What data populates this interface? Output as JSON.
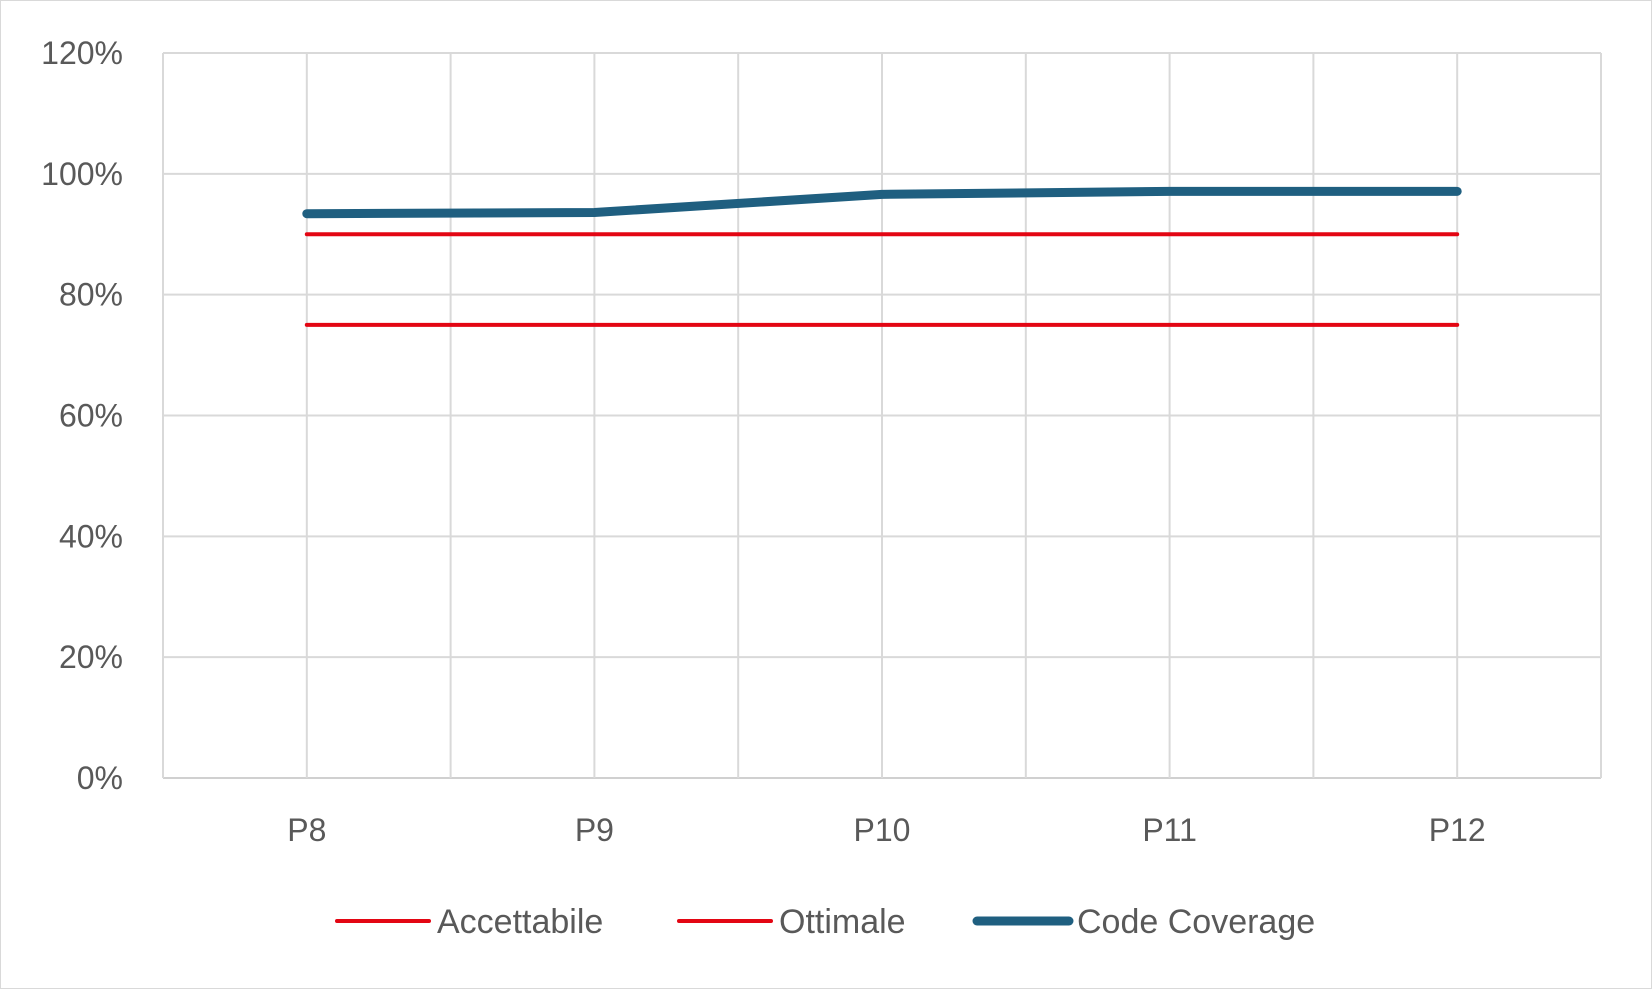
{
  "chart_data": {
    "type": "line",
    "title": "",
    "xlabel": "",
    "ylabel": "",
    "categories": [
      "P8",
      "P9",
      "P10",
      "P11",
      "P12"
    ],
    "ylim": [
      0,
      1.2
    ],
    "y_ticks": [
      {
        "value": 0,
        "label": "0%"
      },
      {
        "value": 0.2,
        "label": "20%"
      },
      {
        "value": 0.4,
        "label": "40%"
      },
      {
        "value": 0.6,
        "label": "60%"
      },
      {
        "value": 0.8,
        "label": "80%"
      },
      {
        "value": 1.0,
        "label": "100%"
      },
      {
        "value": 1.2,
        "label": "120%"
      }
    ],
    "grid": true,
    "legend_position": "bottom",
    "series": [
      {
        "name": "Accettabile",
        "values": [
          0.75,
          0.75,
          0.75,
          0.75,
          0.75
        ],
        "color": "#e30613"
      },
      {
        "name": "Ottimale",
        "values": [
          0.9,
          0.9,
          0.9,
          0.9,
          0.9
        ],
        "color": "#e30613"
      },
      {
        "name": "Code Coverage",
        "values": [
          0.934,
          0.936,
          0.966,
          0.971,
          0.971
        ],
        "color": "#1f5f80"
      }
    ]
  }
}
